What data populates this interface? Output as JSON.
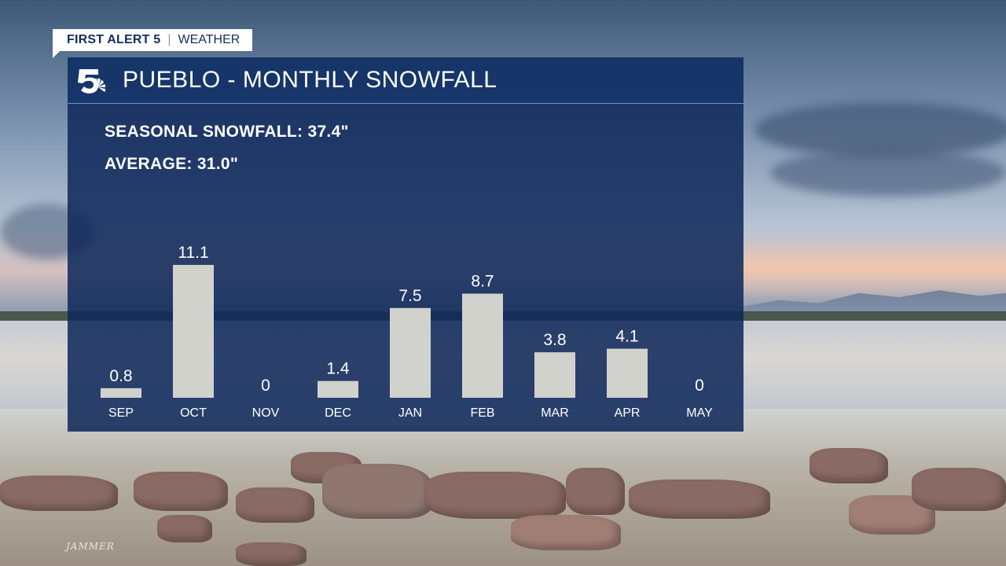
{
  "brand_tag": {
    "brand": "FIRST ALERT 5",
    "section": "WEATHER"
  },
  "logo": {
    "icon": "channel-5-peacock-logo"
  },
  "title": "PUEBLO - MONTHLY SNOWFALL",
  "stats": {
    "seasonal": "SEASONAL SNOWFALL: 37.4\"",
    "average": "AVERAGE: 31.0\""
  },
  "photo_credit": "JAMMER",
  "colors": {
    "panel": "#0e285a",
    "bar": "#d2d2cc",
    "text": "#ffffff",
    "brand": "#142c5c"
  },
  "chart_data": {
    "type": "bar",
    "title": "PUEBLO - MONTHLY SNOWFALL",
    "categories": [
      "SEP",
      "OCT",
      "NOV",
      "DEC",
      "JAN",
      "FEB",
      "MAR",
      "APR",
      "MAY"
    ],
    "values": [
      0.8,
      11.1,
      0,
      1.4,
      7.5,
      8.7,
      3.8,
      4.1,
      0
    ],
    "labels": [
      "0.8",
      "11.1",
      "0",
      "1.4",
      "7.5",
      "8.7",
      "3.8",
      "4.1",
      "0"
    ],
    "xlabel": "",
    "ylabel": "",
    "ylim": [
      0,
      11.1
    ],
    "grid": false,
    "legend": "none"
  }
}
